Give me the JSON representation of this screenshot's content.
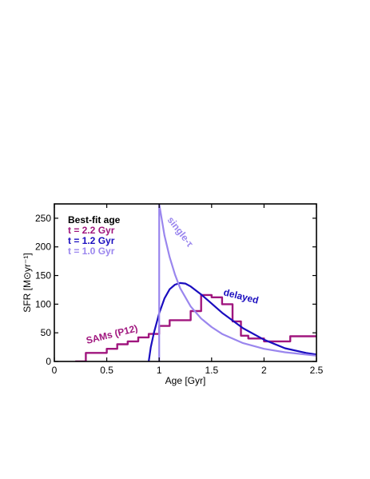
{
  "chart_data": {
    "type": "line",
    "xlabel": "Age [Gyr]",
    "ylabel": "SFR [M⊙yr⁻¹]",
    "xlim": [
      0,
      2.5
    ],
    "ylim": [
      0,
      275
    ],
    "xticks": [
      0,
      0.5,
      1,
      1.5,
      2,
      2.5
    ],
    "xtick_labels": [
      "0",
      "0.5",
      "1",
      "1.5",
      "2",
      "2.5"
    ],
    "yticks": [
      0,
      50,
      100,
      150,
      200,
      250
    ],
    "ytick_labels": [
      "0",
      "50",
      "100",
      "150",
      "200",
      "250"
    ],
    "grid": false,
    "legend": {
      "placement": "top-left",
      "title": "Best-fit age",
      "entries": [
        {
          "label": "t = 2.2 Gyr",
          "color": "#a0167e"
        },
        {
          "label": "t = 1.2 Gyr",
          "color": "#1a0dbf"
        },
        {
          "label": "t = 1.0 Gyr",
          "color": "#9a86ee"
        }
      ]
    },
    "annotations": {
      "single": "single-τ",
      "delayed": "delayed",
      "sams": "SAMs (P12)"
    },
    "series": [
      {
        "color": "#a0167e",
        "x": [
          0.2,
          0.3,
          0.3,
          0.5,
          0.5,
          0.6,
          0.6,
          0.7,
          0.7,
          0.8,
          0.8,
          0.9,
          0.9,
          1.0,
          1.0,
          1.1,
          1.1,
          1.3,
          1.3,
          1.4,
          1.4,
          1.5,
          1.5,
          1.6,
          1.6,
          1.7,
          1.7,
          1.78,
          1.78,
          1.85,
          1.85,
          2.0,
          2.0,
          2.25,
          2.25,
          2.5
        ],
        "y": [
          0,
          0,
          15,
          15,
          22,
          22,
          30,
          30,
          35,
          35,
          42,
          42,
          48,
          48,
          62,
          62,
          72,
          72,
          88,
          88,
          116,
          116,
          112,
          112,
          100,
          100,
          70,
          70,
          45,
          45,
          40,
          40,
          35,
          35,
          44,
          44
        ]
      },
      {
        "color": "#1a0dbf",
        "x": [
          0.9,
          0.92,
          0.95,
          1.0,
          1.05,
          1.1,
          1.15,
          1.2,
          1.25,
          1.3,
          1.4,
          1.5,
          1.6,
          1.8,
          2.0,
          2.2,
          2.4,
          2.5
        ],
        "y": [
          0,
          25,
          50,
          84,
          110,
          126,
          134,
          137,
          136,
          131,
          117,
          101,
          85,
          58,
          38,
          23,
          15,
          12
        ]
      },
      {
        "color": "#9a86ee",
        "x": [
          1.0,
          1.0,
          1.05,
          1.1,
          1.15,
          1.2,
          1.3,
          1.4,
          1.5,
          1.6,
          1.8,
          2.0,
          2.2,
          2.5
        ],
        "y": [
          0,
          275,
          220,
          182,
          152,
          128,
          96,
          75,
          60,
          48,
          32,
          22,
          16,
          10
        ]
      }
    ]
  }
}
